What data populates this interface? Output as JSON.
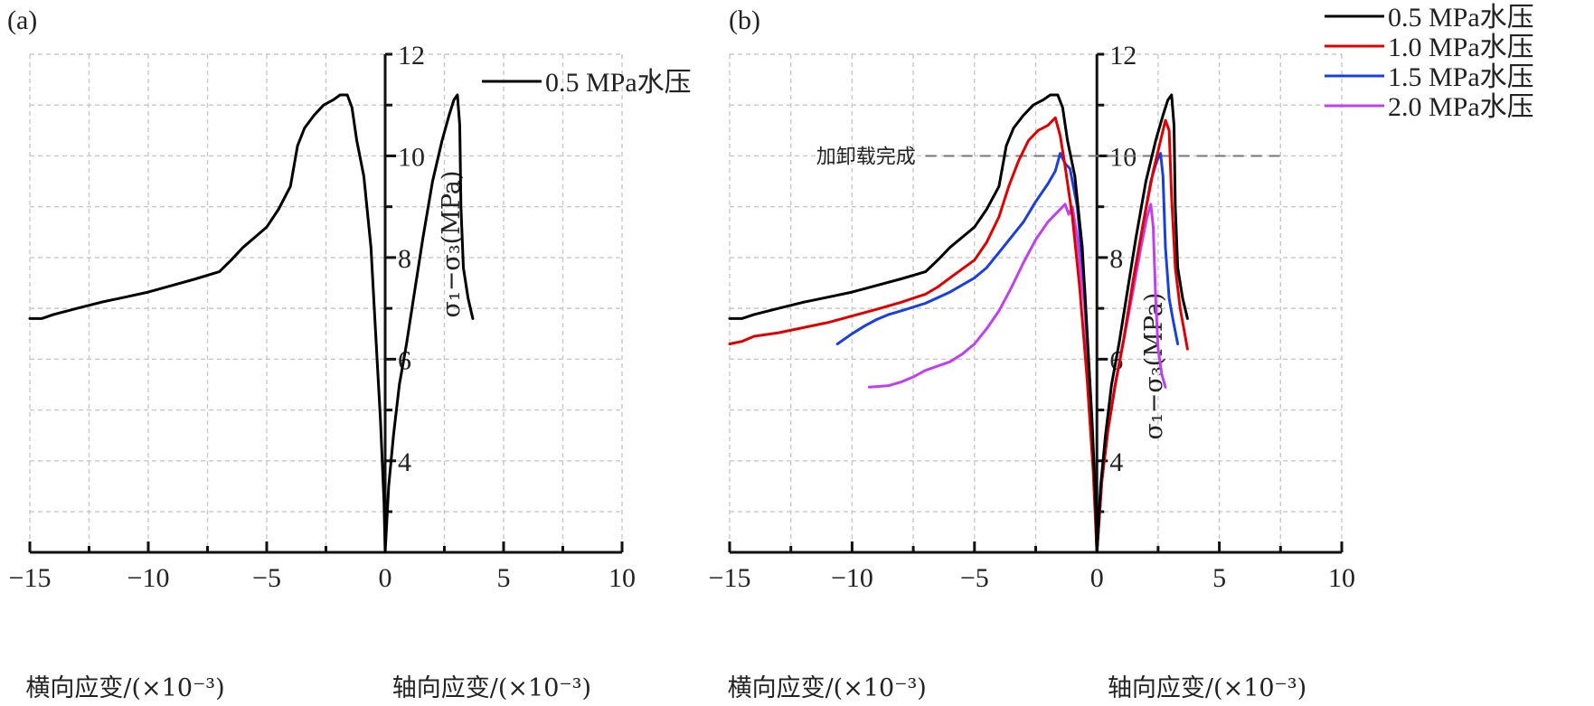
{
  "chart_data": [
    {
      "type": "line",
      "panel_label": "(a)",
      "xlabel_left": "横向应变/(×10⁻³)",
      "xlabel_right": "轴向应变/(×10⁻³)",
      "ylabel": "σ₁−σ₃(MPa)",
      "xlim": [
        -15,
        10
      ],
      "ylim": [
        2.2,
        12
      ],
      "xticks": [
        "−15",
        "−10",
        "−5",
        "0",
        "5",
        "10"
      ],
      "xtick_values": [
        -15,
        -10,
        -5,
        0,
        5,
        10
      ],
      "yticks": [
        "4",
        "6",
        "8",
        "10",
        "12"
      ],
      "ytick_values": [
        4,
        6,
        8,
        10,
        12
      ],
      "grid": true,
      "legend_position": "top-right",
      "series": [
        {
          "name": "0.5 MPa水压",
          "color": "#000000",
          "lateral": [
            [
              -15,
              6.8
            ],
            [
              -14.5,
              6.8
            ],
            [
              -14,
              6.88
            ],
            [
              -13,
              7.0
            ],
            [
              -12,
              7.12
            ],
            [
              -11,
              7.22
            ],
            [
              -10,
              7.32
            ],
            [
              -9,
              7.45
            ],
            [
              -8,
              7.58
            ],
            [
              -7,
              7.72
            ],
            [
              -6.5,
              7.95
            ],
            [
              -6,
              8.2
            ],
            [
              -5,
              8.6
            ],
            [
              -4.5,
              8.95
            ],
            [
              -4,
              9.4
            ],
            [
              -3.7,
              10.2
            ],
            [
              -3.4,
              10.55
            ],
            [
              -3.0,
              10.8
            ],
            [
              -2.6,
              11.0
            ],
            [
              -2.2,
              11.1
            ],
            [
              -1.9,
              11.2
            ],
            [
              -1.6,
              11.2
            ],
            [
              -1.4,
              10.95
            ],
            [
              -1.2,
              10.3
            ],
            [
              -0.9,
              9.6
            ],
            [
              -0.6,
              8.2
            ],
            [
              -0.4,
              6.5
            ],
            [
              -0.2,
              4.8
            ],
            [
              -0.05,
              3.2
            ],
            [
              0,
              2.2
            ]
          ],
          "axial": [
            [
              0,
              2.2
            ],
            [
              0.15,
              3.5
            ],
            [
              0.35,
              4.5
            ],
            [
              0.6,
              5.5
            ],
            [
              0.9,
              6.3
            ],
            [
              1.2,
              7.2
            ],
            [
              1.6,
              8.4
            ],
            [
              2.0,
              9.5
            ],
            [
              2.4,
              10.3
            ],
            [
              2.7,
              10.8
            ],
            [
              2.9,
              11.1
            ],
            [
              3.05,
              11.2
            ],
            [
              3.15,
              10.6
            ],
            [
              3.2,
              9.0
            ],
            [
              3.3,
              7.8
            ],
            [
              3.5,
              7.2
            ],
            [
              3.7,
              6.8
            ]
          ]
        }
      ]
    },
    {
      "type": "line",
      "panel_label": "(b)",
      "xlabel_left": "横向应变/(×10⁻³)",
      "xlabel_right": "轴向应变/(×10⁻³)",
      "ylabel": "σ₁−σ₃(MPa)",
      "xlim": [
        -15,
        10
      ],
      "ylim": [
        2.2,
        12
      ],
      "xticks": [
        "−15",
        "−10",
        "−5",
        "0",
        "5",
        "10"
      ],
      "xtick_values": [
        -15,
        -10,
        -5,
        0,
        5,
        10
      ],
      "yticks": [
        "4",
        "6",
        "8",
        "10",
        "12"
      ],
      "ytick_values": [
        4,
        6,
        8,
        10,
        12
      ],
      "grid": true,
      "legend_position": "top-right",
      "annotation": {
        "text": "加卸载完成",
        "y": 10,
        "style": "dashed horizontal line"
      },
      "series": [
        {
          "name": "0.5 MPa水压",
          "color": "#000000",
          "lateral": [
            [
              -15,
              6.8
            ],
            [
              -14.5,
              6.8
            ],
            [
              -14,
              6.88
            ],
            [
              -13,
              7.0
            ],
            [
              -12,
              7.12
            ],
            [
              -11,
              7.22
            ],
            [
              -10,
              7.32
            ],
            [
              -9,
              7.45
            ],
            [
              -8,
              7.58
            ],
            [
              -7,
              7.72
            ],
            [
              -6.5,
              7.95
            ],
            [
              -6,
              8.2
            ],
            [
              -5,
              8.6
            ],
            [
              -4.5,
              8.95
            ],
            [
              -4,
              9.4
            ],
            [
              -3.7,
              10.2
            ],
            [
              -3.4,
              10.55
            ],
            [
              -3.0,
              10.8
            ],
            [
              -2.6,
              11.0
            ],
            [
              -2.2,
              11.1
            ],
            [
              -1.9,
              11.2
            ],
            [
              -1.6,
              11.2
            ],
            [
              -1.4,
              10.95
            ],
            [
              -1.2,
              10.3
            ],
            [
              -0.9,
              9.6
            ],
            [
              -0.6,
              8.2
            ],
            [
              -0.4,
              6.5
            ],
            [
              -0.2,
              4.8
            ],
            [
              -0.05,
              3.2
            ],
            [
              0,
              2.2
            ]
          ],
          "axial": [
            [
              0,
              2.2
            ],
            [
              0.15,
              3.5
            ],
            [
              0.35,
              4.5
            ],
            [
              0.6,
              5.5
            ],
            [
              0.9,
              6.3
            ],
            [
              1.2,
              7.2
            ],
            [
              1.6,
              8.4
            ],
            [
              2.0,
              9.5
            ],
            [
              2.4,
              10.3
            ],
            [
              2.7,
              10.8
            ],
            [
              2.9,
              11.1
            ],
            [
              3.05,
              11.2
            ],
            [
              3.15,
              10.6
            ],
            [
              3.2,
              9.0
            ],
            [
              3.3,
              7.8
            ],
            [
              3.5,
              7.2
            ],
            [
              3.7,
              6.8
            ]
          ]
        },
        {
          "name": "1.0 MPa水压",
          "color": "#e00000",
          "lateral": [
            [
              -15,
              6.3
            ],
            [
              -14.5,
              6.35
            ],
            [
              -14,
              6.45
            ],
            [
              -13,
              6.52
            ],
            [
              -12,
              6.62
            ],
            [
              -11,
              6.72
            ],
            [
              -10,
              6.85
            ],
            [
              -9,
              6.98
            ],
            [
              -8,
              7.12
            ],
            [
              -7,
              7.28
            ],
            [
              -6.5,
              7.42
            ],
            [
              -6,
              7.6
            ],
            [
              -5,
              7.95
            ],
            [
              -4.5,
              8.3
            ],
            [
              -4,
              8.8
            ],
            [
              -3.6,
              9.4
            ],
            [
              -3.2,
              9.9
            ],
            [
              -2.8,
              10.3
            ],
            [
              -2.4,
              10.5
            ],
            [
              -2.0,
              10.6
            ],
            [
              -1.7,
              10.75
            ],
            [
              -1.5,
              10.4
            ],
            [
              -1.3,
              9.8
            ],
            [
              -1.0,
              8.8
            ],
            [
              -0.7,
              7.4
            ],
            [
              -0.4,
              5.6
            ],
            [
              -0.15,
              3.8
            ],
            [
              0,
              2.2
            ]
          ],
          "axial": [
            [
              0,
              2.2
            ],
            [
              0.2,
              3.6
            ],
            [
              0.45,
              4.6
            ],
            [
              0.75,
              5.5
            ],
            [
              1.1,
              6.4
            ],
            [
              1.5,
              7.6
            ],
            [
              1.9,
              8.7
            ],
            [
              2.3,
              9.7
            ],
            [
              2.6,
              10.3
            ],
            [
              2.8,
              10.7
            ],
            [
              2.95,
              10.5
            ],
            [
              3.05,
              9.2
            ],
            [
              3.2,
              7.8
            ],
            [
              3.4,
              7.0
            ],
            [
              3.7,
              6.2
            ]
          ]
        },
        {
          "name": "1.5 MPa水压",
          "color": "#1a3fe0",
          "lateral": [
            [
              -10.6,
              6.3
            ],
            [
              -10,
              6.5
            ],
            [
              -9.5,
              6.65
            ],
            [
              -9,
              6.78
            ],
            [
              -8.5,
              6.88
            ],
            [
              -8,
              6.95
            ],
            [
              -7,
              7.1
            ],
            [
              -6,
              7.32
            ],
            [
              -5,
              7.6
            ],
            [
              -4.5,
              7.8
            ],
            [
              -4,
              8.1
            ],
            [
              -3.5,
              8.4
            ],
            [
              -3,
              8.7
            ],
            [
              -2.5,
              9.1
            ],
            [
              -2.0,
              9.45
            ],
            [
              -1.7,
              9.7
            ],
            [
              -1.5,
              10.05
            ],
            [
              -1.3,
              9.85
            ],
            [
              -1.1,
              9.75
            ],
            [
              -0.8,
              9.0
            ],
            [
              -0.5,
              7.4
            ],
            [
              -0.25,
              5.2
            ],
            [
              -0.1,
              3.6
            ],
            [
              0,
              2.2
            ]
          ],
          "axial": [
            [
              0,
              2.2
            ],
            [
              0.2,
              3.6
            ],
            [
              0.45,
              4.6
            ],
            [
              0.75,
              5.5
            ],
            [
              1.1,
              6.4
            ],
            [
              1.5,
              7.6
            ],
            [
              1.9,
              8.7
            ],
            [
              2.2,
              9.5
            ],
            [
              2.45,
              9.9
            ],
            [
              2.6,
              10.05
            ],
            [
              2.7,
              9.6
            ],
            [
              2.8,
              8.2
            ],
            [
              2.95,
              7.2
            ],
            [
              3.1,
              6.8
            ],
            [
              3.3,
              6.3
            ]
          ]
        },
        {
          "name": "2.0 MPa水压",
          "color": "#c040f0",
          "lateral": [
            [
              -9.3,
              5.45
            ],
            [
              -8.5,
              5.48
            ],
            [
              -8,
              5.55
            ],
            [
              -7.5,
              5.65
            ],
            [
              -7,
              5.78
            ],
            [
              -6,
              5.95
            ],
            [
              -5.5,
              6.1
            ],
            [
              -5,
              6.3
            ],
            [
              -4.5,
              6.6
            ],
            [
              -4,
              6.95
            ],
            [
              -3.5,
              7.4
            ],
            [
              -3.0,
              7.9
            ],
            [
              -2.5,
              8.35
            ],
            [
              -2.0,
              8.7
            ],
            [
              -1.6,
              8.9
            ],
            [
              -1.3,
              9.05
            ],
            [
              -1.15,
              8.85
            ],
            [
              -1.0,
              9.0
            ],
            [
              -0.8,
              8.4
            ],
            [
              -0.5,
              7.0
            ],
            [
              -0.25,
              5.0
            ],
            [
              -0.1,
              3.6
            ],
            [
              0,
              2.2
            ]
          ],
          "axial": [
            [
              0,
              2.2
            ],
            [
              0.2,
              3.6
            ],
            [
              0.45,
              4.6
            ],
            [
              0.75,
              5.5
            ],
            [
              1.1,
              6.4
            ],
            [
              1.5,
              7.4
            ],
            [
              1.8,
              8.2
            ],
            [
              2.05,
              8.8
            ],
            [
              2.2,
              9.05
            ],
            [
              2.3,
              8.6
            ],
            [
              2.4,
              7.2
            ],
            [
              2.5,
              6.2
            ],
            [
              2.65,
              5.7
            ],
            [
              2.8,
              5.45
            ]
          ]
        }
      ]
    }
  ]
}
